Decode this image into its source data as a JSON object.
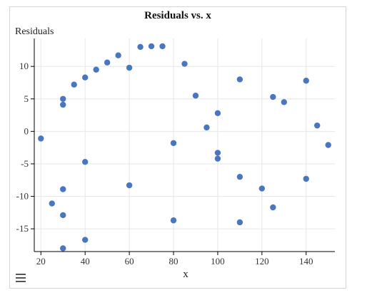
{
  "chart_data": {
    "type": "scatter",
    "title": "Residuals vs. x",
    "xlabel": "x",
    "ylabel": "Residuals",
    "xlim": [
      17,
      153
    ],
    "ylim": [
      -18.5,
      14.3
    ],
    "xticks": [
      20,
      40,
      60,
      80,
      100,
      120,
      140
    ],
    "yticks": [
      10,
      5,
      0,
      -5,
      -10,
      -15
    ],
    "grid": true,
    "point_color": "#4a76c0",
    "points": [
      {
        "x": 20,
        "y": -1.1
      },
      {
        "x": 25,
        "y": -11.1
      },
      {
        "x": 30,
        "y": 5.0
      },
      {
        "x": 30,
        "y": 4.1
      },
      {
        "x": 30,
        "y": -8.9
      },
      {
        "x": 30,
        "y": -12.9
      },
      {
        "x": 30,
        "y": -18.0
      },
      {
        "x": 35,
        "y": 7.2
      },
      {
        "x": 40,
        "y": 8.3
      },
      {
        "x": 40,
        "y": -4.7
      },
      {
        "x": 40,
        "y": -16.7
      },
      {
        "x": 45,
        "y": 9.5
      },
      {
        "x": 50,
        "y": 10.6
      },
      {
        "x": 55,
        "y": 11.7
      },
      {
        "x": 60,
        "y": 9.8
      },
      {
        "x": 60,
        "y": -8.3
      },
      {
        "x": 65,
        "y": 13.0
      },
      {
        "x": 70,
        "y": 13.1
      },
      {
        "x": 75,
        "y": 13.1
      },
      {
        "x": 80,
        "y": -1.8
      },
      {
        "x": 80,
        "y": -13.7
      },
      {
        "x": 85,
        "y": 10.4
      },
      {
        "x": 90,
        "y": 5.5
      },
      {
        "x": 95,
        "y": 0.6
      },
      {
        "x": 100,
        "y": 2.8
      },
      {
        "x": 100,
        "y": -3.3
      },
      {
        "x": 100,
        "y": -4.2
      },
      {
        "x": 110,
        "y": 8.0
      },
      {
        "x": 110,
        "y": -7.0
      },
      {
        "x": 110,
        "y": -14.0
      },
      {
        "x": 120,
        "y": -8.8
      },
      {
        "x": 125,
        "y": 5.3
      },
      {
        "x": 125,
        "y": -11.7
      },
      {
        "x": 130,
        "y": 4.5
      },
      {
        "x": 140,
        "y": 7.8
      },
      {
        "x": 140,
        "y": -7.3
      },
      {
        "x": 145,
        "y": 0.9
      },
      {
        "x": 150,
        "y": -2.1
      }
    ]
  },
  "menu": {
    "icon": "hamburger-menu-icon"
  }
}
